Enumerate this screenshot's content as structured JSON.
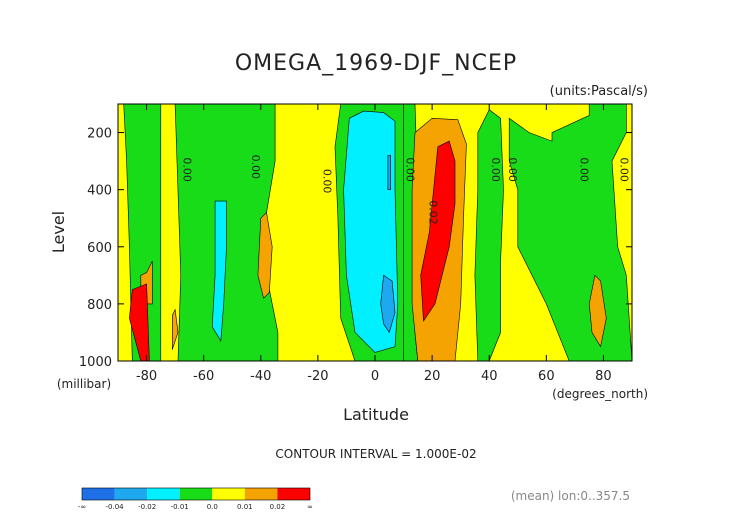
{
  "chart_data": {
    "type": "contour",
    "title": "OMEGA_1969-DJF_NCEP",
    "units_label": "(units:Pascal/s)",
    "xlabel": "Latitude",
    "xunits": "(degrees_north)",
    "ylabel": "Level",
    "yunits": "(millibar)",
    "xlim": [
      -90,
      90
    ],
    "ylim": [
      1000,
      100
    ],
    "x_ticks": [
      -80,
      -60,
      -40,
      -20,
      0,
      20,
      40,
      60,
      80
    ],
    "y_ticks": [
      200,
      400,
      600,
      800,
      1000
    ],
    "contour_interval_text": "CONTOUR INTERVAL = 1.000E-02",
    "footnote": "(mean) lon:0..357.5",
    "colorbar": {
      "labels": [
        "-∞",
        "-0.04",
        "-0.02",
        "-0.01",
        "0.0",
        "0.01",
        "0.02",
        "∞"
      ],
      "colors": [
        "#1e6fe8",
        "#1ea8f0",
        "#00f0ff",
        "#18dc18",
        "#ffff00",
        "#f4a300",
        "#ff0000"
      ]
    },
    "contour_labels": [
      {
        "text": "0.00",
        "lat": -67,
        "lev": 330
      },
      {
        "text": "0.00",
        "lat": -43,
        "lev": 320
      },
      {
        "text": "0.00",
        "lat": -18,
        "lev": 370
      },
      {
        "text": "0.00",
        "lat": 11,
        "lev": 330
      },
      {
        "text": "0.02",
        "lat": 19,
        "lev": 480
      },
      {
        "text": "0.00",
        "lat": 41,
        "lev": 330
      },
      {
        "text": "0.00",
        "lat": 47,
        "lev": 330
      },
      {
        "text": "0.00",
        "lat": 72,
        "lev": 330
      },
      {
        "text": "0.00",
        "lat": 86,
        "lev": 330
      }
    ],
    "regions": [
      {
        "level": "green",
        "poly": [
          [
            -88,
            100
          ],
          [
            -75,
            100
          ],
          [
            -75,
            1000
          ],
          [
            -85,
            1000
          ],
          [
            -86,
            600
          ],
          [
            -87,
            300
          ]
        ]
      },
      {
        "level": "green",
        "poly": [
          [
            -70,
            100
          ],
          [
            -35,
            100
          ],
          [
            -35,
            300
          ],
          [
            -40,
            600
          ],
          [
            -34,
            900
          ],
          [
            -34,
            1000
          ],
          [
            -69,
            1000
          ],
          [
            -68,
            700
          ]
        ]
      },
      {
        "level": "cyan",
        "poly": [
          [
            -56,
            440
          ],
          [
            -52,
            440
          ],
          [
            -52,
            600
          ],
          [
            -53,
            800
          ],
          [
            -54,
            930
          ],
          [
            -57,
            880
          ],
          [
            -56,
            700
          ]
        ]
      },
      {
        "level": "orange",
        "poly": [
          [
            -40,
            500
          ],
          [
            -38,
            480
          ],
          [
            -36,
            600
          ],
          [
            -37,
            760
          ],
          [
            -39,
            780
          ],
          [
            -41,
            700
          ]
        ]
      },
      {
        "level": "green",
        "poly": [
          [
            -12,
            100
          ],
          [
            10,
            100
          ],
          [
            11,
            300
          ],
          [
            12,
            800
          ],
          [
            11,
            1000
          ],
          [
            -7,
            1000
          ],
          [
            -12,
            850
          ],
          [
            -13,
            500
          ],
          [
            -14,
            250
          ]
        ]
      },
      {
        "level": "cyan",
        "poly": [
          [
            -9,
            150
          ],
          [
            -4,
            125
          ],
          [
            3,
            130
          ],
          [
            7,
            160
          ],
          [
            7,
            400
          ],
          [
            8,
            800
          ],
          [
            7,
            950
          ],
          [
            0,
            970
          ],
          [
            -7,
            900
          ],
          [
            -10,
            700
          ],
          [
            -11,
            400
          ]
        ]
      },
      {
        "level": "blue",
        "poly": [
          [
            3,
            700
          ],
          [
            6,
            720
          ],
          [
            7,
            830
          ],
          [
            5,
            900
          ],
          [
            3,
            870
          ],
          [
            2,
            800
          ]
        ]
      },
      {
        "level": "blue",
        "poly": [
          [
            4.5,
            280
          ],
          [
            5.5,
            280
          ],
          [
            5.5,
            400
          ],
          [
            4.5,
            400
          ]
        ]
      },
      {
        "level": "green",
        "poly": [
          [
            10,
            100
          ],
          [
            14,
            100
          ],
          [
            15,
            400
          ],
          [
            14,
            900
          ],
          [
            15,
            1000
          ],
          [
            10,
            1000
          ]
        ]
      },
      {
        "level": "orange",
        "poly": [
          [
            14,
            200
          ],
          [
            20,
            150
          ],
          [
            29,
            155
          ],
          [
            32,
            240
          ],
          [
            31,
            500
          ],
          [
            30,
            800
          ],
          [
            28,
            1000
          ],
          [
            15,
            1000
          ],
          [
            13,
            800
          ],
          [
            13,
            400
          ]
        ]
      },
      {
        "level": "red",
        "poly": [
          [
            22,
            250
          ],
          [
            26,
            230
          ],
          [
            28,
            300
          ],
          [
            28,
            450
          ],
          [
            26,
            600
          ],
          [
            21,
            800
          ],
          [
            17,
            860
          ],
          [
            16,
            700
          ],
          [
            19,
            550
          ],
          [
            21,
            350
          ]
        ]
      },
      {
        "level": "green",
        "poly": [
          [
            36,
            200
          ],
          [
            40,
            120
          ],
          [
            44,
            150
          ],
          [
            45,
            400
          ],
          [
            44,
            650
          ],
          [
            44,
            900
          ],
          [
            40,
            1000
          ],
          [
            36,
            1000
          ],
          [
            35,
            700
          ],
          [
            36,
            400
          ]
        ]
      },
      {
        "level": "green",
        "poly": [
          [
            47,
            150
          ],
          [
            54,
            200
          ],
          [
            62,
            230
          ],
          [
            62,
            200
          ],
          [
            75,
            140
          ],
          [
            75,
            100
          ],
          [
            88,
            100
          ],
          [
            88,
            200
          ],
          [
            83,
            300
          ],
          [
            85,
            600
          ],
          [
            88,
            700
          ],
          [
            90,
            1000
          ],
          [
            68,
            1000
          ],
          [
            60,
            800
          ],
          [
            50,
            600
          ],
          [
            50,
            400
          ],
          [
            47,
            300
          ]
        ]
      },
      {
        "level": "orange",
        "poly": [
          [
            77,
            700
          ],
          [
            79,
            720
          ],
          [
            81,
            850
          ],
          [
            79,
            950
          ],
          [
            76,
            900
          ],
          [
            75,
            800
          ]
        ]
      },
      {
        "level": "orange",
        "poly": [
          [
            -80,
            690
          ],
          [
            -78,
            650
          ],
          [
            -78,
            800
          ],
          [
            -82,
            800
          ],
          [
            -82,
            700
          ]
        ]
      },
      {
        "level": "red",
        "poly": [
          [
            -85,
            750
          ],
          [
            -80,
            730
          ],
          [
            -79,
            1000
          ],
          [
            -82,
            1000
          ],
          [
            -86,
            850
          ]
        ]
      },
      {
        "level": "orange",
        "poly": [
          [
            -71,
            840
          ],
          [
            -70,
            820
          ],
          [
            -69,
            900
          ],
          [
            -71,
            960
          ]
        ]
      }
    ]
  }
}
